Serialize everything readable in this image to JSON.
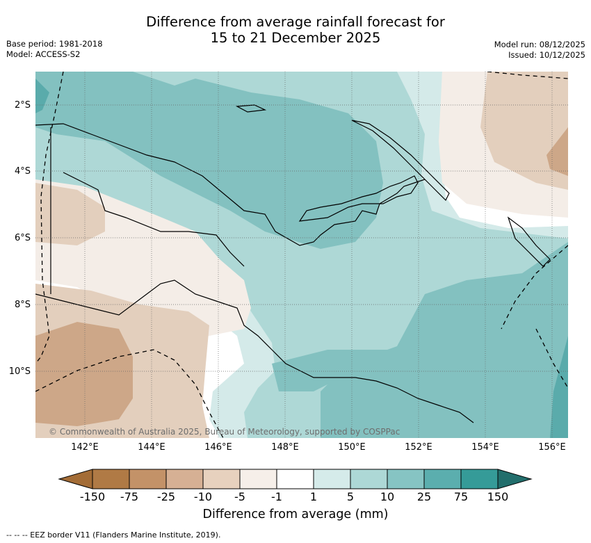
{
  "title": {
    "line1": "Difference from average rainfall forecast for",
    "line2": "15 to 21 December 2025"
  },
  "meta_left": {
    "base_period": "Base period: 1981-2018",
    "model": "Model: ACCESS-S2"
  },
  "meta_right": {
    "model_run": "Model run: 08/12/2025",
    "issued": "Issued: 10/12/2025"
  },
  "map": {
    "lat_labels": [
      "2°S",
      "4°S",
      "6°S",
      "8°S",
      "10°S"
    ],
    "lon_labels": [
      "142°E",
      "144°E",
      "146°E",
      "148°E",
      "150°E",
      "152°E",
      "154°E",
      "156°E"
    ],
    "copyright": "© Commonwealth of Australia 2025, Bureau of Meteorology, supported by COSPPac",
    "colors": {
      "dry_150": "#a06a35",
      "dry_75": "#b88456",
      "dry_25": "#cda788",
      "dry_10": "#e3cfbd",
      "dry_5": "#f4ede7",
      "neutral": "#ffffff",
      "wet_5": "#d4eae9",
      "wet_10": "#aed8d6",
      "wet_25": "#83c1c0",
      "wet_75": "#5aabab",
      "wet_150": "#2e9793"
    }
  },
  "colorbar": {
    "ticks": [
      "-150",
      "-75",
      "-25",
      "-10",
      "-5",
      "-1",
      "1",
      "5",
      "10",
      "25",
      "75",
      "150"
    ],
    "colors": [
      "#a36c36",
      "#b07a45",
      "#c39268",
      "#d6b094",
      "#e7d1be",
      "#f6efe9",
      "#ffffff",
      "#d5ebea",
      "#add8d6",
      "#86c4c3",
      "#5baeae",
      "#359b98",
      "#226e6c"
    ],
    "label": "Difference from average (mm)"
  },
  "footer": "--  --  -- EEZ border V11 (Flanders Marine Institute, 2019)."
}
